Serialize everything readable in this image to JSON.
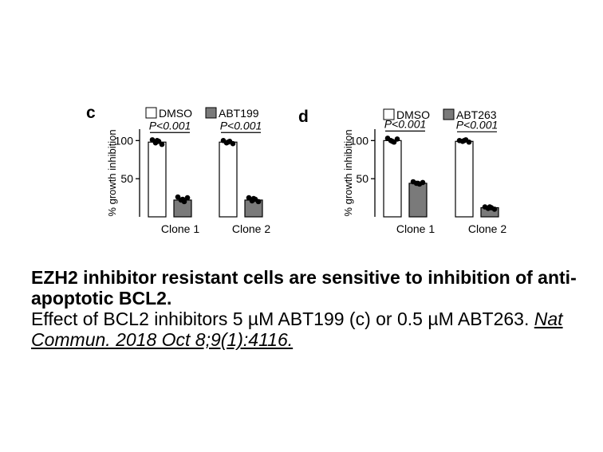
{
  "chart_data": [
    {
      "type": "bar",
      "panel_label": "c",
      "categories": [
        "Clone 1",
        "Clone 2"
      ],
      "series": [
        {
          "name": "DMSO",
          "values": [
            98,
            98
          ],
          "color": "#ffffff",
          "points": [
            [
              101,
              97,
              99,
              95,
              100
            ],
            [
              100,
              97,
              99,
              96,
              98
            ]
          ]
        },
        {
          "name": "ABT199",
          "values": [
            22,
            22
          ],
          "color": "#7a7a7a",
          "points": [
            [
              26,
              22,
              20,
              25,
              23
            ],
            [
              25,
              21,
              23,
              20,
              24
            ]
          ]
        }
      ],
      "significance": [
        "P<0.001",
        "P<0.001"
      ],
      "ylabel": "% growth inhibition",
      "yticks": [
        50,
        100
      ],
      "ylim": [
        0,
        115
      ]
    },
    {
      "type": "bar",
      "panel_label": "d",
      "categories": [
        "Clone 1",
        "Clone 2"
      ],
      "series": [
        {
          "name": "DMSO",
          "values": [
            100,
            99
          ],
          "color": "#ffffff",
          "points": [
            [
              103,
              100,
              98,
              102,
              99
            ],
            [
              100,
              99,
              101,
              98,
              100
            ]
          ]
        },
        {
          "name": "ABT263",
          "values": [
            44,
            12
          ],
          "color": "#7a7a7a",
          "points": [
            [
              46,
              44,
              43,
              45,
              44
            ],
            [
              13,
              11,
              12,
              10,
              13
            ]
          ]
        }
      ],
      "significance": [
        "P<0.001",
        "P<0.001"
      ],
      "ylabel": "% growth inhibition",
      "yticks": [
        50,
        100
      ],
      "ylim": [
        0,
        115
      ]
    }
  ],
  "caption": {
    "title": "EZH2 inhibitor resistant cells are sensitive to inhibition of anti-apoptotic BCL2.",
    "body": "Effect of BCL2 inhibitors 5 µM ABT199 (c) or 0.5 µM ABT263.",
    "citation": "Nat Commun. 2018 Oct 8;9(1):4116."
  }
}
